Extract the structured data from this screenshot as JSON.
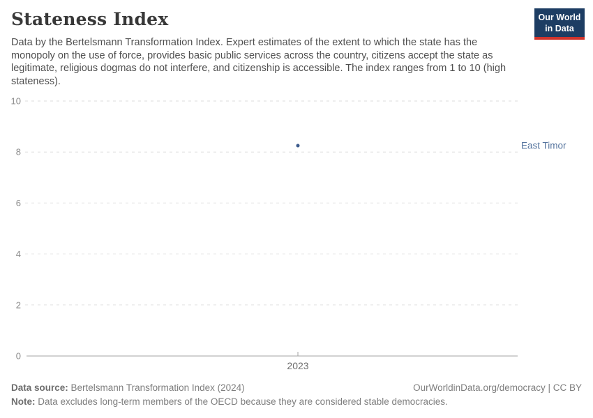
{
  "header": {
    "title": "Stateness Index",
    "subtitle_lines": [
      "Data by the Bertelsmann Transformation Index. Expert estimates of the extent to which the state has the",
      "monopoly on the use of force, provides basic public services across the country, citizens accept the state as",
      "legitimate, religious dogmas do not interfere, and citizenship is accessible. The index ranges from 1 to 10 (high",
      "stateness)."
    ],
    "logo": {
      "line1": "Our World",
      "line2": "in Data",
      "bg_color": "#1d3d63",
      "accent_color": "#d0342c"
    }
  },
  "chart_data": {
    "type": "scatter",
    "title": "Stateness Index",
    "x": [
      2023
    ],
    "x_tick_labels": [
      "2023"
    ],
    "y_ticks": [
      0,
      2,
      4,
      6,
      8,
      10
    ],
    "ylim": [
      0,
      10
    ],
    "xlabel": "",
    "ylabel": "",
    "grid": "horizontal-dashed",
    "legend_position": "right-inline-label",
    "series": [
      {
        "name": "East Timor",
        "color": "#3d5c8d",
        "label_color": "#55749e",
        "points": [
          {
            "x": 2023,
            "y": 8.25
          }
        ]
      }
    ]
  },
  "footer": {
    "data_source_label": "Data source:",
    "data_source_value": " Bertelsmann Transformation Index (2024)",
    "rights": "OurWorldinData.org/democracy | CC BY",
    "note_label": "Note:",
    "note_value": " Data excludes long-term members of the OECD because they are considered stable democracies."
  }
}
